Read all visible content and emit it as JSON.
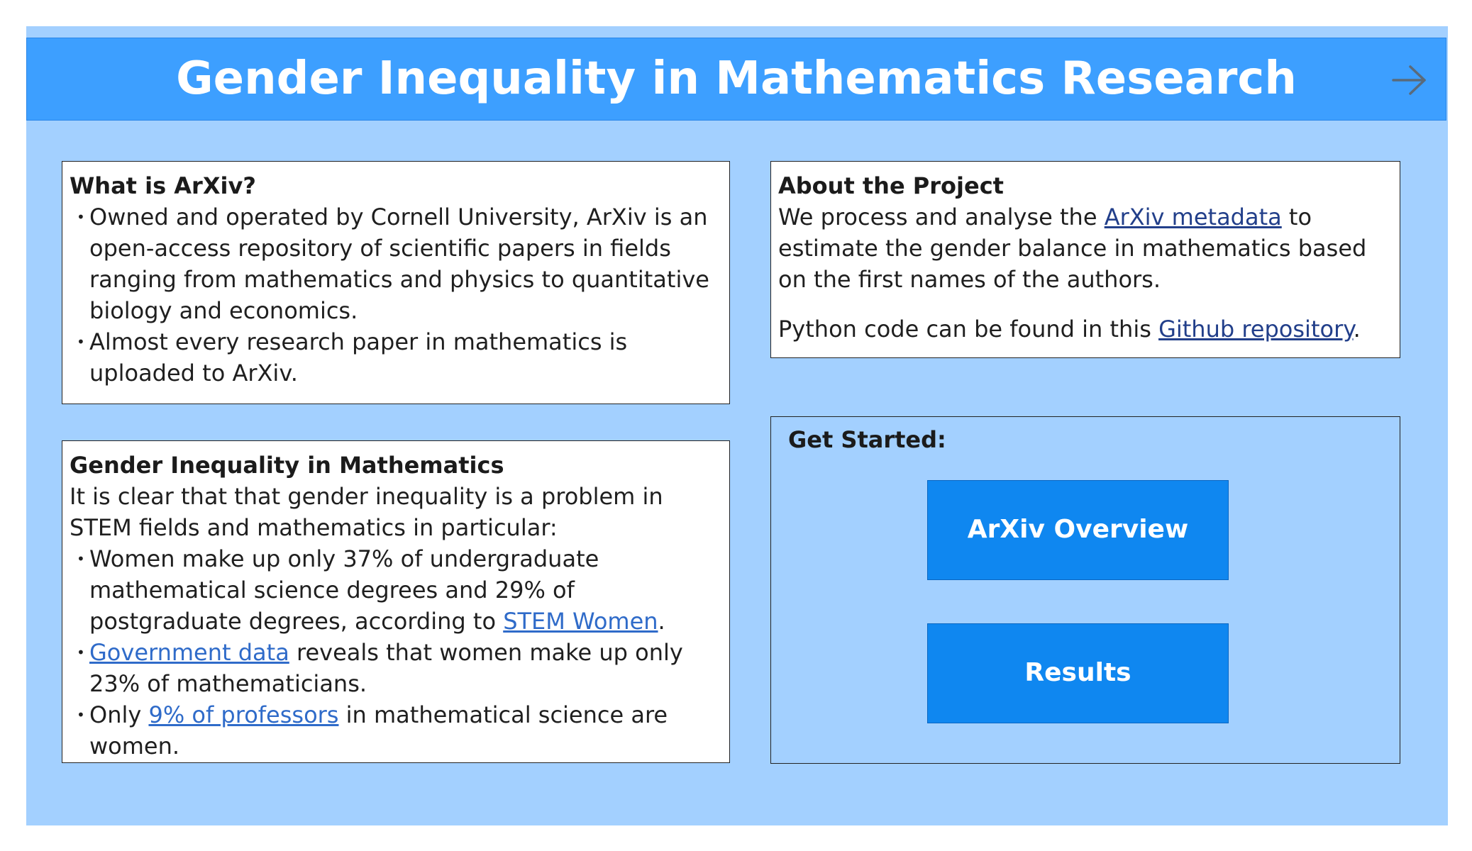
{
  "header": {
    "title": "Gender Inequality in Mathematics Research",
    "next_icon": "arrow-right-icon"
  },
  "arxiv_card": {
    "title": "What is ArXiv?",
    "bullets": [
      "Owned and operated by Cornell University, ArXiv is an open-access repository of scientific papers in fields ranging from mathematics and physics to quantitative biology and economics.",
      "Almost every research paper in mathematics is uploaded to ArXiv."
    ]
  },
  "gender_card": {
    "title": "Gender Inequality in Mathematics",
    "intro": "It is clear that that gender inequality is a problem in STEM fields and mathematics in particular:",
    "bullet1": {
      "text": "Women make up only 37% of undergraduate mathematical science degrees and 29% of postgraduate degrees, according to ",
      "link": "STEM Women",
      "after": "."
    },
    "bullet2": {
      "link": "Government data",
      "text": " reveals that women make up only 23% of mathematicians."
    },
    "bullet3": {
      "before": "Only ",
      "link": "9% of professors",
      "after": " in mathematical science are women."
    }
  },
  "about_card": {
    "title": "About the Project",
    "p1_before": "We process and analyse the ",
    "p1_link": "ArXiv metadata",
    "p1_after": " to estimate the gender balance in mathematics based on the first names of the authors.",
    "p2_before": "Python code can be found in this ",
    "p2_link": "Github repository",
    "p2_after": "."
  },
  "get_started": {
    "title": "Get Started:",
    "buttons": [
      {
        "label": "ArXiv Overview"
      },
      {
        "label": "Results"
      }
    ]
  },
  "colors": {
    "background": "#a3d0ff",
    "header": "#3d9fff",
    "button": "#0f87f0",
    "link": "#2f6bc9"
  }
}
